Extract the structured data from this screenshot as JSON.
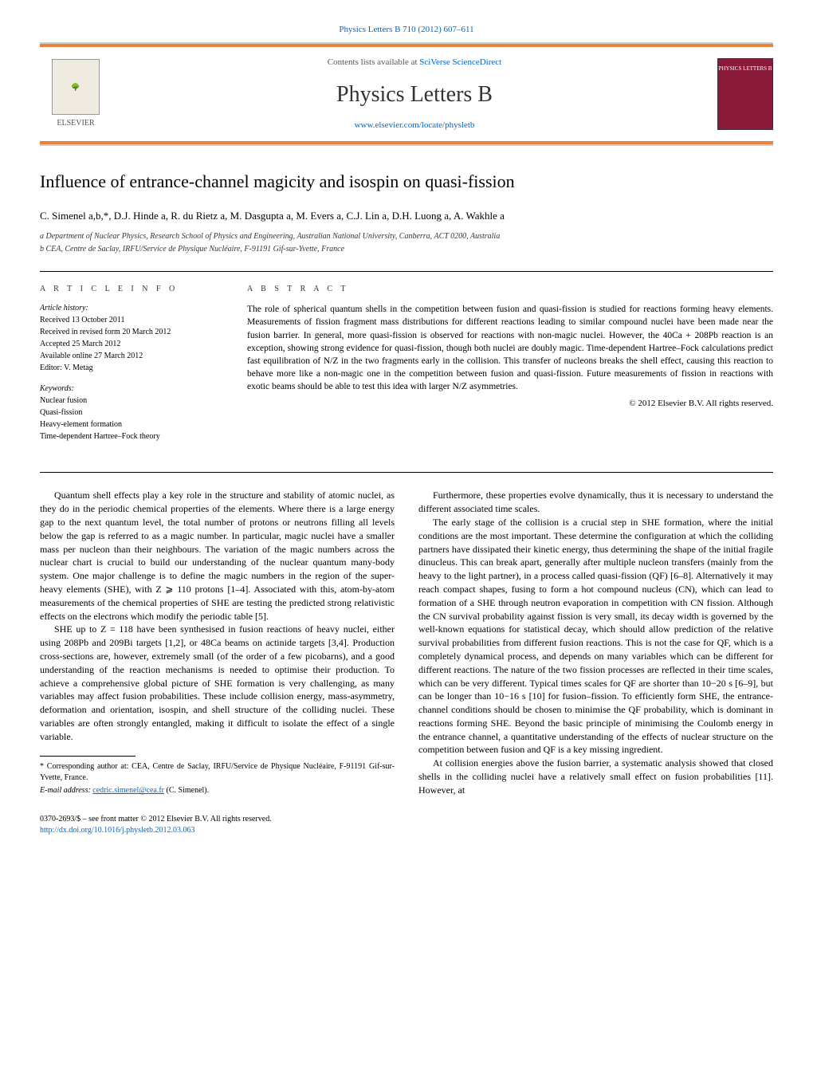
{
  "journal_ref": "Physics Letters B 710 (2012) 607–611",
  "header": {
    "contents_text": "Contents lists available at ",
    "contents_link": "SciVerse ScienceDirect",
    "journal_name": "Physics Letters B",
    "journal_url": "www.elsevier.com/locate/physletb",
    "elsevier_label": "ELSEVIER",
    "cover_label": "PHYSICS LETTERS B"
  },
  "title": "Influence of entrance-channel magicity and isospin on quasi-fission",
  "authors_line": "C. Simenel a,b,*, D.J. Hinde a, R. du Rietz a, M. Dasgupta a, M. Evers a, C.J. Lin a, D.H. Luong a, A. Wakhle a",
  "affiliations": [
    "a Department of Nuclear Physics, Research School of Physics and Engineering, Australian National University, Canberra, ACT 0200, Australia",
    "b CEA, Centre de Saclay, IRFU/Service de Physique Nucléaire, F-91191 Gif-sur-Yvette, France"
  ],
  "article_info": {
    "heading": "A R T I C L E   I N F O",
    "history_label": "Article history:",
    "history": [
      "Received 13 October 2011",
      "Received in revised form 20 March 2012",
      "Accepted 25 March 2012",
      "Available online 27 March 2012",
      "Editor: V. Metag"
    ],
    "keywords_label": "Keywords:",
    "keywords": [
      "Nuclear fusion",
      "Quasi-fission",
      "Heavy-element formation",
      "Time-dependent Hartree–Fock theory"
    ]
  },
  "abstract": {
    "heading": "A B S T R A C T",
    "text": "The role of spherical quantum shells in the competition between fusion and quasi-fission is studied for reactions forming heavy elements. Measurements of fission fragment mass distributions for different reactions leading to similar compound nuclei have been made near the fusion barrier. In general, more quasi-fission is observed for reactions with non-magic nuclei. However, the 40Ca + 208Pb reaction is an exception, showing strong evidence for quasi-fission, though both nuclei are doubly magic. Time-dependent Hartree–Fock calculations predict fast equilibration of N/Z in the two fragments early in the collision. This transfer of nucleons breaks the shell effect, causing this reaction to behave more like a non-magic one in the competition between fusion and quasi-fission. Future measurements of fission in reactions with exotic beams should be able to test this idea with larger N/Z asymmetries.",
    "copyright": "© 2012 Elsevier B.V. All rights reserved."
  },
  "body": {
    "left": [
      "Quantum shell effects play a key role in the structure and stability of atomic nuclei, as they do in the periodic chemical properties of the elements. Where there is a large energy gap to the next quantum level, the total number of protons or neutrons filling all levels below the gap is referred to as a magic number. In particular, magic nuclei have a smaller mass per nucleon than their neighbours. The variation of the magic numbers across the nuclear chart is crucial to build our understanding of the nuclear quantum many-body system. One major challenge is to define the magic numbers in the region of the super-heavy elements (SHE), with Z ⩾ 110 protons [1–4]. Associated with this, atom-by-atom measurements of the chemical properties of SHE are testing the predicted strong relativistic effects on the electrons which modify the periodic table [5].",
      "SHE up to Z = 118 have been synthesised in fusion reactions of heavy nuclei, either using 208Pb and 209Bi targets [1,2], or 48Ca beams on actinide targets [3,4]. Production cross-sections are, however, extremely small (of the order of a few picobarns), and a good understanding of the reaction mechanisms is needed to optimise their production. To achieve a comprehensive global picture of SHE formation is very challenging, as many variables may affect fusion probabilities. These include collision energy, mass-asymmetry, deformation and orientation, isospin, and shell structure of the colliding nuclei. These variables are often strongly entangled, making it difficult to isolate the effect of a single variable."
    ],
    "right": [
      "Furthermore, these properties evolve dynamically, thus it is necessary to understand the different associated time scales.",
      "The early stage of the collision is a crucial step in SHE formation, where the initial conditions are the most important. These determine the configuration at which the colliding partners have dissipated their kinetic energy, thus determining the shape of the initial fragile dinucleus. This can break apart, generally after multiple nucleon transfers (mainly from the heavy to the light partner), in a process called quasi-fission (QF) [6–8]. Alternatively it may reach compact shapes, fusing to form a hot compound nucleus (CN), which can lead to formation of a SHE through neutron evaporation in competition with CN fission. Although the CN survival probability against fission is very small, its decay width is governed by the well-known equations for statistical decay, which should allow prediction of the relative survival probabilities from different fusion reactions. This is not the case for QF, which is a completely dynamical process, and depends on many variables which can be different for different reactions. The nature of the two fission processes are reflected in their time scales, which can be very different. Typical times scales for QF are shorter than 10−20 s [6–9], but can be longer than 10−16 s [10] for fusion–fission. To efficiently form SHE, the entrance-channel conditions should be chosen to minimise the QF probability, which is dominant in reactions forming SHE. Beyond the basic principle of minimising the Coulomb energy in the entrance channel, a quantitative understanding of the effects of nuclear structure on the competition between fusion and QF is a key missing ingredient.",
      "At collision energies above the fusion barrier, a systematic analysis showed that closed shells in the colliding nuclei have a relatively small effect on fusion probabilities [11]. However, at"
    ]
  },
  "footnotes": {
    "corr": "* Corresponding author at: CEA, Centre de Saclay, IRFU/Service de Physique Nucléaire, F-91191 Gif-sur-Yvette, France.",
    "email_label": "E-mail address: ",
    "email": "cedric.simenel@cea.fr",
    "email_author": " (C. Simenel)."
  },
  "footer": {
    "left": "0370-2693/$ – see front matter © 2012 Elsevier B.V. All rights reserved.",
    "doi": "http://dx.doi.org/10.1016/j.physletb.2012.03.063"
  },
  "colors": {
    "link": "#0066cc",
    "orange_bar": "#e8833e",
    "cover_bg": "#8b1a3a"
  }
}
